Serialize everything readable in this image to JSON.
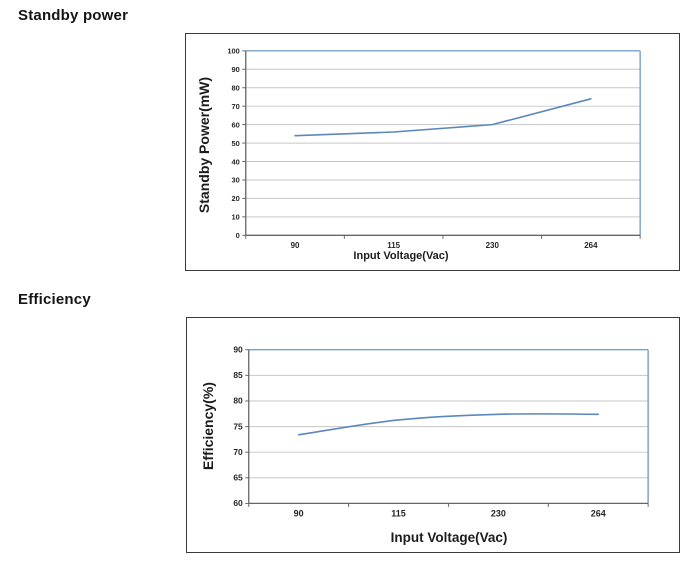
{
  "page": {
    "background": "#ffffff"
  },
  "sections": [
    {
      "heading": "Standby power"
    },
    {
      "heading": "Efficiency"
    }
  ],
  "chart_data": [
    {
      "id": "standby",
      "type": "line",
      "title": "",
      "categories": [
        "90",
        "115",
        "230",
        "264"
      ],
      "values": [
        54,
        56,
        60,
        74
      ],
      "xlabel": "Input Voltage(Vac)",
      "ylabel": "Standby Power(mW)",
      "ylim": [
        0,
        100
      ],
      "ytick_step": 10,
      "grid": true,
      "legend": "none",
      "smooth": false,
      "colors": {
        "line": "#5b87bd",
        "grid": "#c6c6c6",
        "axis": "#666666",
        "plot_border": "#79a0cc",
        "tick_text": "#262626"
      }
    },
    {
      "id": "efficiency",
      "type": "line",
      "title": "",
      "categories": [
        "90",
        "115",
        "230",
        "264"
      ],
      "values": [
        73.4,
        76.3,
        77.4,
        77.4
      ],
      "xlabel": "Input Voltage(Vac)",
      "ylabel": "Efficiency(%)",
      "ylim": [
        60,
        90
      ],
      "ytick_step": 5,
      "grid": true,
      "legend": "none",
      "smooth": true,
      "colors": {
        "line": "#5b87bd",
        "grid": "#c6c6c6",
        "axis": "#666666",
        "plot_border": "#79a0cc",
        "tick_text": "#262626"
      }
    }
  ]
}
